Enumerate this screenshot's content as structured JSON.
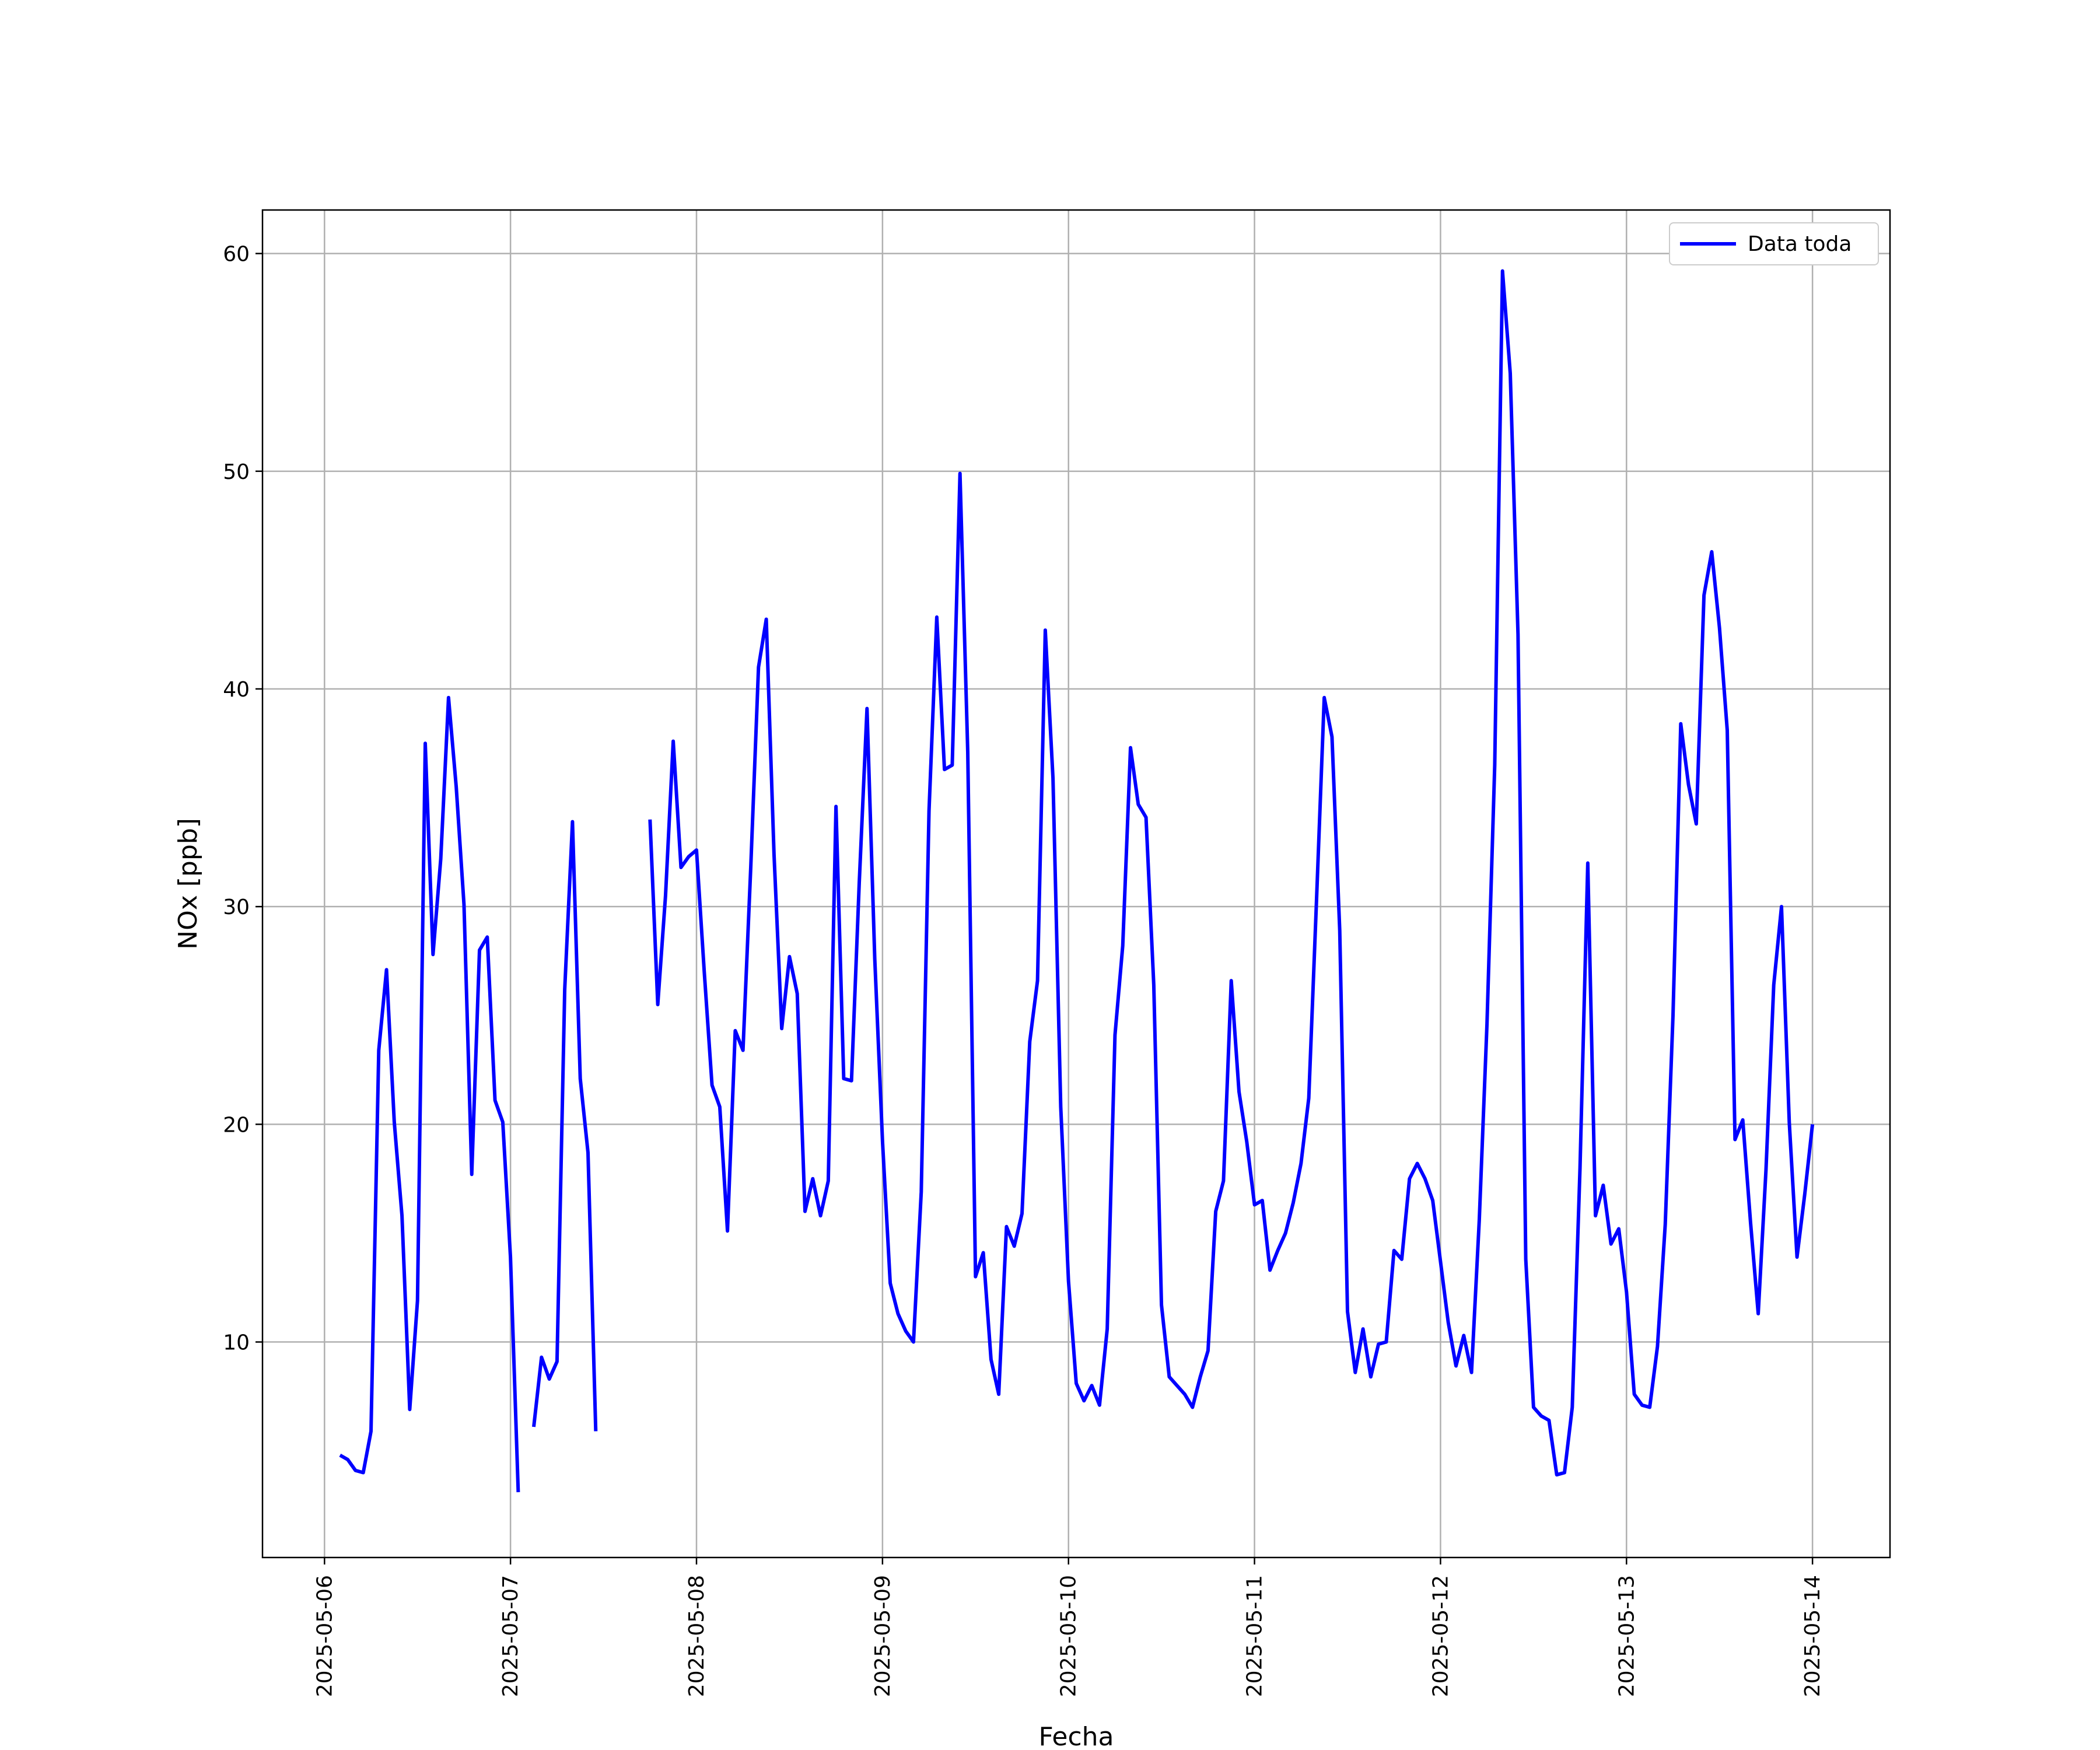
{
  "chart_data": {
    "type": "line",
    "xlabel": "Fecha",
    "ylabel": "NOx [ppb]",
    "xlim": [
      "2025-05-05T16:00",
      "2025-05-14T10:00"
    ],
    "ylim": [
      0.1,
      62
    ],
    "x_ticks": [
      "2025-05-06",
      "2025-05-07",
      "2025-05-08",
      "2025-05-09",
      "2025-05-10",
      "2025-05-11",
      "2025-05-12",
      "2025-05-13",
      "2025-05-14"
    ],
    "y_ticks": [
      10,
      20,
      30,
      40,
      50,
      60
    ],
    "grid": true,
    "legend_position": "top-right",
    "line_color": "#0000ff",
    "series": [
      {
        "name": "Data toda",
        "color": "#0000ff",
        "segments": [
          [
            [
              "2025-05-06T02:00",
              4.8
            ],
            [
              "2025-05-06T03:00",
              4.6
            ],
            [
              "2025-05-06T04:00",
              4.1
            ],
            [
              "2025-05-06T05:00",
              4.0
            ],
            [
              "2025-05-06T06:00",
              5.9
            ],
            [
              "2025-05-06T07:00",
              23.4
            ],
            [
              "2025-05-06T08:00",
              27.1
            ],
            [
              "2025-05-06T09:00",
              20.1
            ],
            [
              "2025-05-06T10:00",
              15.8
            ],
            [
              "2025-05-06T11:00",
              6.9
            ],
            [
              "2025-05-06T12:00",
              11.9
            ],
            [
              "2025-05-06T13:00",
              37.5
            ],
            [
              "2025-05-06T14:00",
              27.8
            ],
            [
              "2025-05-06T15:00",
              32.2
            ],
            [
              "2025-05-06T16:00",
              39.6
            ],
            [
              "2025-05-06T17:00",
              35.5
            ],
            [
              "2025-05-06T18:00",
              30.1
            ],
            [
              "2025-05-06T19:00",
              17.7
            ],
            [
              "2025-05-06T20:00",
              28.0
            ],
            [
              "2025-05-06T21:00",
              28.6
            ],
            [
              "2025-05-06T22:00",
              21.1
            ],
            [
              "2025-05-06T23:00",
              20.1
            ],
            [
              "2025-05-07T00:00",
              13.9
            ],
            [
              "2025-05-07T01:00",
              3.1
            ]
          ],
          [
            [
              "2025-05-07T03:00",
              6.1
            ],
            [
              "2025-05-07T04:00",
              9.3
            ],
            [
              "2025-05-07T05:00",
              8.3
            ],
            [
              "2025-05-07T06:00",
              9.1
            ],
            [
              "2025-05-07T07:00",
              26.2
            ],
            [
              "2025-05-07T08:00",
              33.9
            ],
            [
              "2025-05-07T09:00",
              22.1
            ],
            [
              "2025-05-07T10:00",
              18.7
            ],
            [
              "2025-05-07T11:00",
              5.9
            ]
          ],
          [
            [
              "2025-05-07T18:00",
              34.0
            ],
            [
              "2025-05-07T19:00",
              25.5
            ],
            [
              "2025-05-07T20:00",
              30.5
            ],
            [
              "2025-05-07T21:00",
              37.6
            ],
            [
              "2025-05-07T22:00",
              31.8
            ],
            [
              "2025-05-07T23:00",
              32.3
            ],
            [
              "2025-05-08T00:00",
              32.6
            ],
            [
              "2025-05-08T01:00",
              27.0
            ],
            [
              "2025-05-08T02:00",
              21.8
            ],
            [
              "2025-05-08T03:00",
              20.8
            ],
            [
              "2025-05-08T04:00",
              15.1
            ],
            [
              "2025-05-08T05:00",
              24.3
            ],
            [
              "2025-05-08T06:00",
              23.4
            ],
            [
              "2025-05-08T07:00",
              31.8
            ],
            [
              "2025-05-08T08:00",
              41.0
            ],
            [
              "2025-05-08T09:00",
              43.2
            ],
            [
              "2025-05-08T10:00",
              32.4
            ],
            [
              "2025-05-08T11:00",
              24.4
            ],
            [
              "2025-05-08T12:00",
              27.7
            ],
            [
              "2025-05-08T13:00",
              26.0
            ],
            [
              "2025-05-08T14:00",
              16.0
            ],
            [
              "2025-05-08T15:00",
              17.5
            ],
            [
              "2025-05-08T16:00",
              15.8
            ],
            [
              "2025-05-08T17:00",
              17.4
            ],
            [
              "2025-05-08T18:00",
              34.6
            ],
            [
              "2025-05-08T19:00",
              22.1
            ],
            [
              "2025-05-08T20:00",
              22.0
            ],
            [
              "2025-05-08T21:00",
              31.1
            ],
            [
              "2025-05-08T22:00",
              39.1
            ],
            [
              "2025-05-08T23:00",
              27.6
            ],
            [
              "2025-05-09T00:00",
              19.2
            ],
            [
              "2025-05-09T01:00",
              12.7
            ],
            [
              "2025-05-09T02:00",
              11.3
            ],
            [
              "2025-05-09T03:00",
              10.5
            ],
            [
              "2025-05-09T04:00",
              10.0
            ],
            [
              "2025-05-09T05:00",
              16.9
            ],
            [
              "2025-05-09T06:00",
              34.4
            ],
            [
              "2025-05-09T07:00",
              43.3
            ],
            [
              "2025-05-09T08:00",
              36.3
            ],
            [
              "2025-05-09T09:00",
              36.5
            ],
            [
              "2025-05-09T10:00",
              49.9
            ],
            [
              "2025-05-09T11:00",
              37.1
            ],
            [
              "2025-05-09T12:00",
              13.0
            ],
            [
              "2025-05-09T13:00",
              14.1
            ],
            [
              "2025-05-09T14:00",
              9.2
            ],
            [
              "2025-05-09T15:00",
              7.6
            ],
            [
              "2025-05-09T16:00",
              15.3
            ],
            [
              "2025-05-09T17:00",
              14.4
            ],
            [
              "2025-05-09T18:00",
              15.9
            ],
            [
              "2025-05-09T19:00",
              23.8
            ],
            [
              "2025-05-09T20:00",
              26.6
            ],
            [
              "2025-05-09T21:00",
              42.7
            ],
            [
              "2025-05-09T22:00",
              35.9
            ],
            [
              "2025-05-09T23:00",
              20.8
            ],
            [
              "2025-05-10T00:00",
              12.8
            ],
            [
              "2025-05-10T01:00",
              8.1
            ],
            [
              "2025-05-10T02:00",
              7.3
            ],
            [
              "2025-05-10T03:00",
              8.0
            ],
            [
              "2025-05-10T04:00",
              7.1
            ],
            [
              "2025-05-10T05:00",
              10.6
            ],
            [
              "2025-05-10T06:00",
              24.1
            ],
            [
              "2025-05-10T07:00",
              28.2
            ],
            [
              "2025-05-10T08:00",
              37.3
            ],
            [
              "2025-05-10T09:00",
              34.7
            ],
            [
              "2025-05-10T10:00",
              34.1
            ],
            [
              "2025-05-10T11:00",
              26.4
            ],
            [
              "2025-05-10T12:00",
              11.7
            ],
            [
              "2025-05-10T13:00",
              8.4
            ],
            [
              "2025-05-10T14:00",
              8.0
            ],
            [
              "2025-05-10T15:00",
              7.6
            ],
            [
              "2025-05-10T16:00",
              7.0
            ],
            [
              "2025-05-10T17:00",
              8.4
            ],
            [
              "2025-05-10T18:00",
              9.6
            ],
            [
              "2025-05-10T19:00",
              16.0
            ],
            [
              "2025-05-10T20:00",
              17.4
            ],
            [
              "2025-05-10T21:00",
              26.6
            ],
            [
              "2025-05-10T22:00",
              21.5
            ],
            [
              "2025-05-10T23:00",
              19.2
            ],
            [
              "2025-05-11T00:00",
              16.3
            ],
            [
              "2025-05-11T01:00",
              16.5
            ],
            [
              "2025-05-11T02:00",
              13.3
            ],
            [
              "2025-05-11T03:00",
              14.2
            ],
            [
              "2025-05-11T04:00",
              15.0
            ],
            [
              "2025-05-11T05:00",
              16.4
            ],
            [
              "2025-05-11T06:00",
              18.2
            ],
            [
              "2025-05-11T07:00",
              21.2
            ],
            [
              "2025-05-11T08:00",
              30.3
            ],
            [
              "2025-05-11T09:00",
              39.6
            ],
            [
              "2025-05-11T10:00",
              37.8
            ],
            [
              "2025-05-11T11:00",
              28.9
            ],
            [
              "2025-05-11T12:00",
              11.4
            ],
            [
              "2025-05-11T13:00",
              8.6
            ],
            [
              "2025-05-11T14:00",
              10.6
            ],
            [
              "2025-05-11T15:00",
              8.4
            ],
            [
              "2025-05-11T16:00",
              9.9
            ],
            [
              "2025-05-11T17:00",
              10.0
            ],
            [
              "2025-05-11T18:00",
              14.2
            ],
            [
              "2025-05-11T19:00",
              13.8
            ],
            [
              "2025-05-11T20:00",
              17.5
            ],
            [
              "2025-05-11T21:00",
              18.2
            ],
            [
              "2025-05-11T22:00",
              17.5
            ],
            [
              "2025-05-11T23:00",
              16.5
            ],
            [
              "2025-05-12T00:00",
              13.7
            ],
            [
              "2025-05-12T01:00",
              10.9
            ],
            [
              "2025-05-12T02:00",
              8.9
            ],
            [
              "2025-05-12T03:00",
              10.3
            ],
            [
              "2025-05-12T04:00",
              8.6
            ],
            [
              "2025-05-12T05:00",
              15.6
            ],
            [
              "2025-05-12T06:00",
              24.6
            ],
            [
              "2025-05-12T07:00",
              36.5
            ],
            [
              "2025-05-12T08:00",
              59.2
            ],
            [
              "2025-05-12T09:00",
              54.5
            ],
            [
              "2025-05-12T10:00",
              42.5
            ],
            [
              "2025-05-12T11:00",
              13.8
            ],
            [
              "2025-05-12T12:00",
              7.0
            ],
            [
              "2025-05-12T13:00",
              6.6
            ],
            [
              "2025-05-12T14:00",
              6.4
            ],
            [
              "2025-05-12T15:00",
              3.9
            ],
            [
              "2025-05-12T16:00",
              4.0
            ],
            [
              "2025-05-12T17:00",
              7.0
            ],
            [
              "2025-05-12T18:00",
              18.0
            ],
            [
              "2025-05-12T19:00",
              32.0
            ],
            [
              "2025-05-12T20:00",
              15.8
            ],
            [
              "2025-05-12T21:00",
              17.2
            ],
            [
              "2025-05-12T22:00",
              14.5
            ],
            [
              "2025-05-12T23:00",
              15.2
            ],
            [
              "2025-05-13T00:00",
              12.3
            ],
            [
              "2025-05-13T01:00",
              7.6
            ],
            [
              "2025-05-13T02:00",
              7.1
            ],
            [
              "2025-05-13T03:00",
              7.0
            ],
            [
              "2025-05-13T04:00",
              9.8
            ],
            [
              "2025-05-13T05:00",
              15.4
            ],
            [
              "2025-05-13T06:00",
              25.0
            ],
            [
              "2025-05-13T07:00",
              38.4
            ],
            [
              "2025-05-13T08:00",
              35.6
            ],
            [
              "2025-05-13T09:00",
              33.8
            ],
            [
              "2025-05-13T10:00",
              44.3
            ],
            [
              "2025-05-13T11:00",
              46.3
            ],
            [
              "2025-05-13T12:00",
              42.8
            ],
            [
              "2025-05-13T13:00",
              38.1
            ],
            [
              "2025-05-13T14:00",
              19.3
            ],
            [
              "2025-05-13T15:00",
              20.2
            ],
            [
              "2025-05-13T16:00",
              15.5
            ],
            [
              "2025-05-13T17:00",
              11.3
            ],
            [
              "2025-05-13T18:00",
              17.9
            ],
            [
              "2025-05-13T19:00",
              26.4
            ],
            [
              "2025-05-13T20:00",
              30.0
            ],
            [
              "2025-05-13T21:00",
              20.1
            ],
            [
              "2025-05-13T22:00",
              13.9
            ],
            [
              "2025-05-13T23:00",
              16.8
            ],
            [
              "2025-05-14T00:00",
              20.0
            ]
          ]
        ]
      }
    ]
  }
}
